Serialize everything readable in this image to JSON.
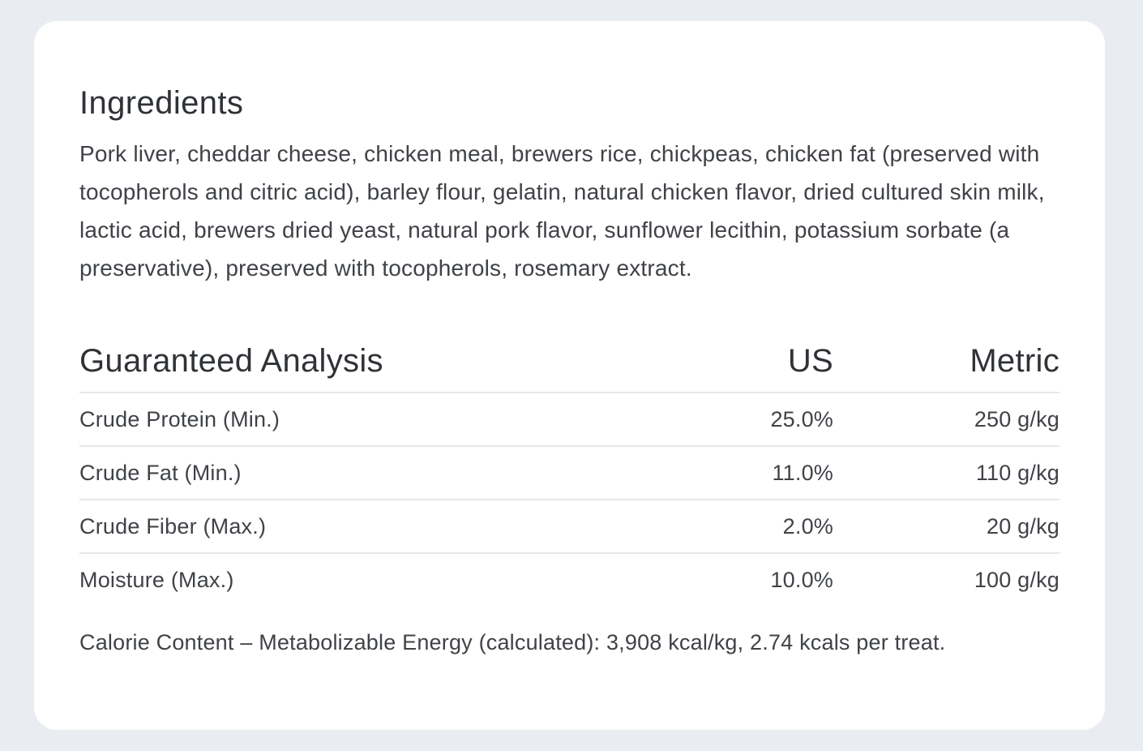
{
  "ingredients": {
    "title": "Ingredients",
    "text": "Pork liver, cheddar cheese, chicken meal, brewers rice, chickpeas, chicken fat (preserved with tocopherols and citric acid), barley flour, gelatin, natural chicken flavor, dried cultured skin milk, lactic acid, brewers dried yeast, natural pork flavor, sunflower lecithin, potassium sorbate (a preservative), preserved with tocopherols, rosemary extract."
  },
  "analysis": {
    "headers": {
      "label": "Guaranteed Analysis",
      "us": "US",
      "metric": "Metric"
    },
    "rows": [
      {
        "label": "Crude Protein (Min.)",
        "us": "25.0%",
        "metric": "250 g/kg"
      },
      {
        "label": "Crude Fat (Min.)",
        "us": "11.0%",
        "metric": "110 g/kg"
      },
      {
        "label": "Crude Fiber (Max.)",
        "us": "2.0%",
        "metric": "20 g/kg"
      },
      {
        "label": "Moisture (Max.)",
        "us": "10.0%",
        "metric": "100 g/kg"
      }
    ]
  },
  "calorie_content": "Calorie Content – Metabolizable Energy (calculated): 3,908 kcal/kg, 2.74 kcals per treat.",
  "colors": {
    "background": "#e9ecf1",
    "card": "#ffffff",
    "text": "#3f4247",
    "divider": "#e6e7ea"
  }
}
